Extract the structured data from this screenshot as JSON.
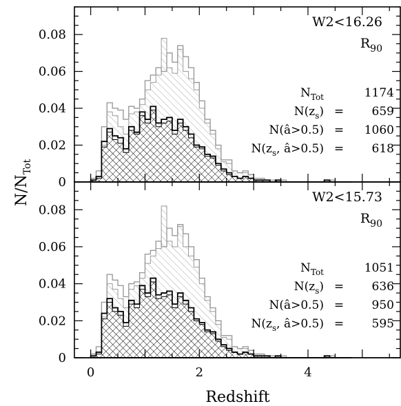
{
  "chart_data": [
    {
      "type": "histogram",
      "panel": "top",
      "title_line1": "W2<16.26",
      "title_line2": "R",
      "title_line2_sub": "90",
      "xlabel": "Redshift",
      "ylabel_main": "N/N",
      "ylabel_sub": "Tot",
      "xlim": [
        -0.3,
        5.7
      ],
      "ylim": [
        0,
        0.095
      ],
      "x_ticks": [
        "0",
        "2",
        "4"
      ],
      "y_ticks": [
        "0",
        "0.02",
        "0.04",
        "0.06",
        "0.08"
      ],
      "bin_start": 0.0,
      "bin_width": 0.1,
      "series": [
        {
          "name": "N_Tot",
          "style": "gray-outline",
          "values": [
            0.002,
            0.006,
            0.03,
            0.043,
            0.04,
            0.039,
            0.034,
            0.041,
            0.04,
            0.045,
            0.055,
            0.058,
            0.062,
            0.06,
            0.07,
            0.065,
            0.074,
            0.068,
            0.062,
            0.054,
            0.044,
            0.034,
            0.028,
            0.02,
            0.012,
            0.012,
            0.006,
            0.005,
            0.006,
            0.004,
            0.002,
            0.002,
            0.001,
            0.001,
            0.001,
            0.001,
            0.0,
            0.0,
            0.0,
            0.0,
            0.0,
            0.0,
            0.0,
            0.001,
            0.001,
            0.0,
            0.0,
            0.0
          ]
        },
        {
          "name": "N(â>0.5)",
          "style": "gray-hatch",
          "values": [
            0.001,
            0.003,
            0.02,
            0.038,
            0.036,
            0.03,
            0.026,
            0.037,
            0.038,
            0.042,
            0.05,
            0.054,
            0.058,
            0.078,
            0.062,
            0.059,
            0.072,
            0.06,
            0.056,
            0.05,
            0.04,
            0.032,
            0.026,
            0.018,
            0.011,
            0.01,
            0.006,
            0.005,
            0.005,
            0.004,
            0.002,
            0.002,
            0.001,
            0.001,
            0.001,
            0.001,
            0.0,
            0.0,
            0.0,
            0.0,
            0.0,
            0.0,
            0.0,
            0.001,
            0.001,
            0.0,
            0.0,
            0.0
          ]
        },
        {
          "name": "N(z_s)",
          "style": "black-outline",
          "values": [
            0.001,
            0.003,
            0.022,
            0.029,
            0.025,
            0.024,
            0.018,
            0.03,
            0.027,
            0.038,
            0.034,
            0.041,
            0.032,
            0.034,
            0.035,
            0.028,
            0.034,
            0.03,
            0.026,
            0.02,
            0.019,
            0.015,
            0.014,
            0.01,
            0.007,
            0.005,
            0.003,
            0.002,
            0.003,
            0.002,
            0.001,
            0.001,
            0.001,
            0.0,
            0.001,
            0.0,
            0.0,
            0.0,
            0.0,
            0.0,
            0.0,
            0.0,
            0.0,
            0.001,
            0.0,
            0.0,
            0.0,
            0.0
          ]
        },
        {
          "name": "N(z_s, â>0.5)",
          "style": "black-hatch",
          "values": [
            0.001,
            0.002,
            0.019,
            0.027,
            0.023,
            0.021,
            0.016,
            0.028,
            0.026,
            0.036,
            0.032,
            0.039,
            0.03,
            0.032,
            0.033,
            0.026,
            0.032,
            0.028,
            0.024,
            0.019,
            0.018,
            0.014,
            0.013,
            0.009,
            0.006,
            0.004,
            0.003,
            0.002,
            0.003,
            0.002,
            0.001,
            0.001,
            0.001,
            0.0,
            0.001,
            0.0,
            0.0,
            0.0,
            0.0,
            0.0,
            0.0,
            0.0,
            0.0,
            0.001,
            0.0,
            0.0,
            0.0,
            0.0
          ]
        }
      ],
      "stats": [
        {
          "label": "N",
          "sub": "Tot",
          "label_rest": "",
          "eq": "",
          "value": "1174"
        },
        {
          "label": "N(z",
          "sub": "s",
          "label_rest": ")",
          "eq": "=",
          "value": "659"
        },
        {
          "label": "N(â>0.5)",
          "sub": "",
          "label_rest": "",
          "eq": "=",
          "value": "1060"
        },
        {
          "label": "N(z",
          "sub": "s",
          "label_rest": ", â>0.5)",
          "eq": "=",
          "value": "618"
        }
      ]
    },
    {
      "type": "histogram",
      "panel": "bottom",
      "title_line1": "W2<15.73",
      "title_line2": "R",
      "title_line2_sub": "90",
      "xlabel": "Redshift",
      "ylabel_main": "N/N",
      "ylabel_sub": "Tot",
      "xlim": [
        -0.3,
        5.7
      ],
      "ylim": [
        0,
        0.095
      ],
      "x_ticks": [
        "0",
        "2",
        "4"
      ],
      "y_ticks": [
        "0",
        "0.02",
        "0.04",
        "0.06",
        "0.08"
      ],
      "bin_start": 0.0,
      "bin_width": 0.1,
      "series": [
        {
          "name": "N_Tot",
          "style": "gray-outline",
          "values": [
            0.002,
            0.006,
            0.03,
            0.045,
            0.042,
            0.039,
            0.033,
            0.04,
            0.041,
            0.046,
            0.056,
            0.058,
            0.063,
            0.06,
            0.07,
            0.066,
            0.072,
            0.067,
            0.06,
            0.053,
            0.043,
            0.033,
            0.027,
            0.02,
            0.012,
            0.012,
            0.006,
            0.005,
            0.006,
            0.004,
            0.002,
            0.002,
            0.001,
            0.001,
            0.001,
            0.001,
            0.0,
            0.0,
            0.0,
            0.0,
            0.0,
            0.0,
            0.0,
            0.001,
            0.001,
            0.0,
            0.0,
            0.0
          ]
        },
        {
          "name": "N(â>0.5)",
          "style": "gray-hatch",
          "values": [
            0.001,
            0.003,
            0.022,
            0.04,
            0.037,
            0.032,
            0.027,
            0.037,
            0.039,
            0.043,
            0.051,
            0.055,
            0.059,
            0.082,
            0.063,
            0.06,
            0.071,
            0.06,
            0.055,
            0.049,
            0.04,
            0.031,
            0.025,
            0.018,
            0.011,
            0.01,
            0.006,
            0.005,
            0.005,
            0.004,
            0.002,
            0.002,
            0.001,
            0.001,
            0.001,
            0.001,
            0.0,
            0.0,
            0.0,
            0.0,
            0.0,
            0.0,
            0.0,
            0.001,
            0.001,
            0.0,
            0.0,
            0.0
          ]
        },
        {
          "name": "N(z_s)",
          "style": "black-outline",
          "values": [
            0.001,
            0.003,
            0.024,
            0.032,
            0.027,
            0.025,
            0.019,
            0.031,
            0.029,
            0.039,
            0.035,
            0.043,
            0.034,
            0.035,
            0.036,
            0.029,
            0.035,
            0.031,
            0.027,
            0.021,
            0.019,
            0.015,
            0.014,
            0.01,
            0.007,
            0.005,
            0.003,
            0.002,
            0.003,
            0.002,
            0.001,
            0.001,
            0.001,
            0.0,
            0.001,
            0.0,
            0.0,
            0.0,
            0.0,
            0.0,
            0.0,
            0.0,
            0.0,
            0.001,
            0.0,
            0.0,
            0.0,
            0.0
          ]
        },
        {
          "name": "N(z_s, â>0.5)",
          "style": "black-hatch",
          "values": [
            0.001,
            0.002,
            0.021,
            0.03,
            0.025,
            0.023,
            0.017,
            0.029,
            0.027,
            0.037,
            0.033,
            0.041,
            0.032,
            0.033,
            0.034,
            0.027,
            0.033,
            0.029,
            0.025,
            0.02,
            0.018,
            0.014,
            0.013,
            0.009,
            0.006,
            0.004,
            0.003,
            0.002,
            0.003,
            0.002,
            0.001,
            0.001,
            0.001,
            0.0,
            0.001,
            0.0,
            0.0,
            0.0,
            0.0,
            0.0,
            0.0,
            0.0,
            0.0,
            0.001,
            0.0,
            0.0,
            0.0,
            0.0
          ]
        }
      ],
      "stats": [
        {
          "label": "N",
          "sub": "Tot",
          "label_rest": "",
          "eq": "",
          "value": "1051"
        },
        {
          "label": "N(z",
          "sub": "s",
          "label_rest": ")",
          "eq": "=",
          "value": "636"
        },
        {
          "label": "N(â>0.5)",
          "sub": "",
          "label_rest": "",
          "eq": "=",
          "value": "950"
        },
        {
          "label": "N(z",
          "sub": "s",
          "label_rest": ", â>0.5)",
          "eq": "=",
          "value": "595"
        }
      ]
    }
  ],
  "colors": {
    "gray": "#9a9a9a",
    "black": "#000000",
    "hatch_gray": "#a8a8a8",
    "hatch_black": "#000000"
  }
}
